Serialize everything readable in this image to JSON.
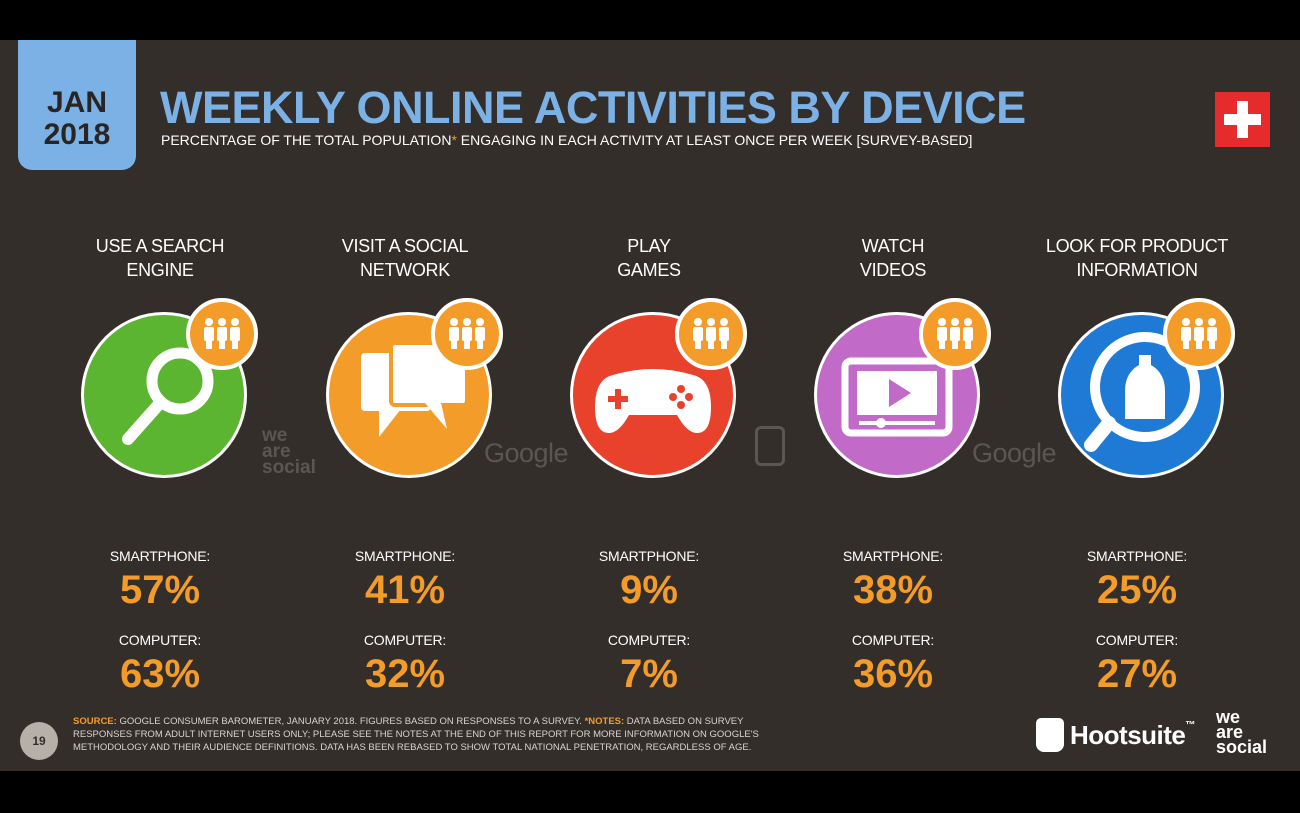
{
  "header": {
    "date_month": "JAN",
    "date_year": "2018",
    "title": "WEEKLY ONLINE ACTIVITIES BY DEVICE",
    "subtitle_pre": "PERCENTAGE OF THE TOTAL POPULATION",
    "subtitle_star": "*",
    "subtitle_post": " ENGAGING IN EACH ACTIVITY AT LEAST ONCE PER WEEK [SURVEY-BASED]",
    "flag_icon": "switzerland-flag-icon"
  },
  "activities": [
    {
      "label_line1": "USE A SEARCH",
      "label_line2": "ENGINE",
      "icon": "magnifier-icon",
      "color": "#5cb531",
      "smartphone_label": "SMARTPHONE:",
      "smartphone_value": "57%",
      "computer_label": "COMPUTER:",
      "computer_value": "63%"
    },
    {
      "label_line1": "VISIT A SOCIAL",
      "label_line2": "NETWORK",
      "icon": "chat-bubbles-icon",
      "color": "#f39c2a",
      "smartphone_label": "SMARTPHONE:",
      "smartphone_value": "41%",
      "computer_label": "COMPUTER:",
      "computer_value": "32%"
    },
    {
      "label_line1": "PLAY",
      "label_line2": "GAMES",
      "icon": "gamepad-icon",
      "color": "#e8412c",
      "smartphone_label": "SMARTPHONE:",
      "smartphone_value": "9%",
      "computer_label": "COMPUTER:",
      "computer_value": "7%"
    },
    {
      "label_line1": "WATCH",
      "label_line2": "VIDEOS",
      "icon": "video-player-icon",
      "color": "#c16ac8",
      "smartphone_label": "SMARTPHONE:",
      "smartphone_value": "38%",
      "computer_label": "COMPUTER:",
      "computer_value": "36%"
    },
    {
      "label_line1": "LOOK FOR PRODUCT",
      "label_line2": "INFORMATION",
      "icon": "product-search-icon",
      "color": "#1f7ad6",
      "smartphone_label": "SMARTPHONE:",
      "smartphone_value": "25%",
      "computer_label": "COMPUTER:",
      "computer_value": "27%"
    }
  ],
  "watermarks": {
    "google": "Google",
    "we": "we",
    "are": "are",
    "social": "social"
  },
  "footer": {
    "page_number": "19",
    "source_label": "SOURCE:",
    "source_text": " GOOGLE CONSUMER BAROMETER, JANUARY 2018. FIGURES BASED ON RESPONSES TO A SURVEY. ",
    "notes_label": "*NOTES:",
    "notes_text": " DATA BASED ON SURVEY RESPONSES FROM ADULT INTERNET USERS ONLY; PLEASE SEE THE NOTES AT THE END OF THIS REPORT FOR MORE INFORMATION ON GOOGLE'S METHODOLOGY AND THEIR AUDIENCE DEFINITIONS. DATA HAS BEEN REBASED TO SHOW TOTAL NATIONAL PENETRATION, REGARDLESS OF AGE.",
    "hootsuite": "Hootsuite",
    "trademark": "™",
    "was_we": "we",
    "was_are": "are",
    "was_social": "social"
  }
}
